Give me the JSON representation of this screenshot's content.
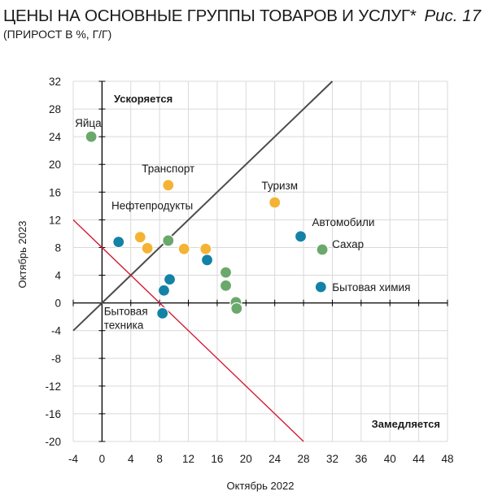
{
  "header": {
    "title": "ЦЕНЫ НА ОСНОВНЫЕ ГРУППЫ ТОВАРОВ И УСЛУГ*",
    "subtitle": "(ПРИРОСТ В %, Г/Г)",
    "figure_label": "Рис. 17"
  },
  "colors": {
    "orange": "#f5b335",
    "green": "#6aa86b",
    "blue": "#1382a6",
    "diagonal": "#4d4d4d",
    "red_line": "#d41c36"
  },
  "chart_data": {
    "type": "scatter",
    "xlabel": "Октябрь 2022",
    "ylabel": "Октябрь 2023",
    "xlim": [
      -4,
      48
    ],
    "ylim": [
      -20,
      32
    ],
    "xticks": [
      -4,
      0,
      4,
      8,
      12,
      16,
      20,
      24,
      28,
      32,
      36,
      40,
      44,
      48
    ],
    "yticks": [
      -20,
      -16,
      -12,
      -8,
      -4,
      0,
      4,
      8,
      12,
      16,
      20,
      24,
      28,
      32
    ],
    "grid": true,
    "reference_lines": [
      {
        "name": "diagonal",
        "slope": 1,
        "intercept": 0,
        "color": "#4d4d4d"
      },
      {
        "name": "red",
        "slope": -1,
        "intercept": 8,
        "color": "#d41c36"
      }
    ],
    "region_labels": {
      "upper": "Ускоряется",
      "lower": "Замедляется"
    },
    "points": [
      {
        "x": -1.5,
        "y": 24,
        "color": "#6aa86b",
        "label": "Яйца"
      },
      {
        "x": 9.2,
        "y": 17,
        "color": "#f5b335",
        "label": "Транспорт"
      },
      {
        "x": 24,
        "y": 14.5,
        "color": "#f5b335",
        "label": "Туризм"
      },
      {
        "x": 2.3,
        "y": 8.8,
        "color": "#1382a6"
      },
      {
        "x": 5.3,
        "y": 9.5,
        "color": "#f5b335"
      },
      {
        "x": 6.3,
        "y": 7.9,
        "color": "#f5b335",
        "label": "Нефтепродукты"
      },
      {
        "x": 9.2,
        "y": 9,
        "color": "#6aa86b"
      },
      {
        "x": 11.4,
        "y": 7.8,
        "color": "#f5b335"
      },
      {
        "x": 14.4,
        "y": 7.8,
        "color": "#f5b335"
      },
      {
        "x": 14.6,
        "y": 6.2,
        "color": "#1382a6"
      },
      {
        "x": 17.2,
        "y": 4.4,
        "color": "#6aa86b"
      },
      {
        "x": 17.2,
        "y": 2.5,
        "color": "#6aa86b"
      },
      {
        "x": 9.4,
        "y": 3.4,
        "color": "#1382a6"
      },
      {
        "x": 8.6,
        "y": 1.8,
        "color": "#1382a6"
      },
      {
        "x": 18.6,
        "y": 0.1,
        "color": "#6aa86b"
      },
      {
        "x": 18.7,
        "y": -0.8,
        "color": "#6aa86b"
      },
      {
        "x": 8.4,
        "y": -1.5,
        "color": "#1382a6",
        "label": "Бытовая техника"
      },
      {
        "x": 27.6,
        "y": 9.6,
        "color": "#1382a6",
        "label": "Автомобили"
      },
      {
        "x": 30.6,
        "y": 7.7,
        "color": "#6aa86b",
        "label": "Сахар"
      },
      {
        "x": 30.4,
        "y": 2.3,
        "color": "#1382a6",
        "label": "Бытовая химия"
      }
    ]
  }
}
